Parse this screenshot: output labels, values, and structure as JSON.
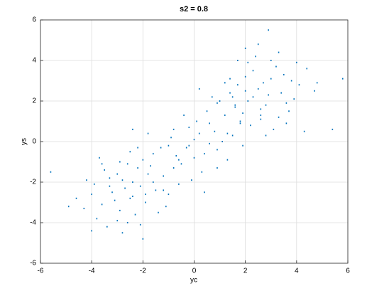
{
  "chart_data": {
    "type": "scatter",
    "title": "s2 = 0.8",
    "x_label": "yc",
    "y_label": "ys",
    "color": "#0072bd",
    "grid": true,
    "xlim": [
      -6,
      6
    ],
    "ylim": [
      -6,
      6
    ],
    "xticks": [
      -6,
      -4,
      -2,
      0,
      2,
      4,
      6
    ],
    "yticks": [
      -6,
      -4,
      -2,
      0,
      2,
      4,
      6
    ],
    "x": [
      -3.2,
      -2.8,
      -2.5,
      -2.1,
      -3.6,
      -4.0,
      -1.8,
      -2.9,
      -3.3,
      -2.4,
      -1.5,
      -2.2,
      -3.0,
      -3.9,
      -4.3,
      -2.6,
      -1.9,
      -3.5,
      -2.7,
      -1.2,
      -2.0,
      -3.1,
      -4.6,
      -2.3,
      -1.6,
      -3.8,
      -2.9,
      -1.0,
      -3.4,
      -2.5,
      -4.9,
      -5.6,
      -1.4,
      -2.8,
      -3.7,
      -2.1,
      -1.7,
      -3.3,
      -2.4,
      -0.8,
      -3.0,
      -4.2,
      -2.6,
      -1.9,
      -1.1,
      -2.2,
      -3.6,
      -4.0,
      -2.0,
      -0.6,
      -1.0,
      -0.5,
      0.0,
      0.4,
      -0.2,
      0.8,
      1.2,
      -0.8,
      0.3,
      -1.3,
      0.9,
      1.5,
      -0.3,
      0.1,
      0.6,
      -0.6,
      1.0,
      1.8,
      0.2,
      -1.6,
      0.5,
      1.3,
      -0.1,
      0.7,
      -0.9,
      1.6,
      0.0,
      -1.8,
      1.1,
      -1.2,
      -0.4,
      0.9,
      1.4,
      -0.7,
      0.2,
      -2.4,
      1.9,
      0.4,
      -0.2,
      0.6,
      2.5,
      2.1,
      3.0,
      2.8,
      1.7,
      3.4,
      2.3,
      3.8,
      1.9,
      2.6,
      3.2,
      2.0,
      1.5,
      2.9,
      3.6,
      4.1,
      2.4,
      1.8,
      3.3,
      2.7,
      3.0,
      4.4,
      2.2,
      1.4,
      3.5,
      2.6,
      4.7,
      2.0,
      3.1,
      1.6,
      2.5,
      3.9,
      1.2,
      2.8,
      5.4,
      5.8,
      4.3,
      2.1,
      3.7,
      0.9,
      2.3,
      3.3,
      4.0,
      1.7,
      2.9,
      2.6,
      3.6,
      1.3,
      2.0,
      4.8
    ],
    "values": [
      -2.5,
      -1.9,
      -2.8,
      -2.2,
      -3.1,
      -2.6,
      -1.6,
      -3.4,
      -1.8,
      -2.0,
      -2.4,
      -1.3,
      -3.9,
      -2.1,
      -3.3,
      -1.1,
      -3.0,
      -1.4,
      -2.3,
      -1.7,
      -0.9,
      -2.9,
      -2.8,
      -3.6,
      -2.0,
      -3.8,
      -1.0,
      -2.6,
      -4.2,
      -0.5,
      -3.2,
      -1.5,
      -3.5,
      -4.5,
      -0.8,
      -4.1,
      -1.2,
      -2.2,
      -2.7,
      -1.3,
      -1.6,
      -1.9,
      -4.0,
      -2.6,
      -3.2,
      -0.3,
      -1.1,
      -4.4,
      -4.8,
      -0.9,
      -0.2,
      -1.1,
      0.1,
      -0.6,
      0.7,
      0.5,
      1.3,
      0.6,
      -1.5,
      -0.3,
      -0.4,
      0.3,
      -0.3,
      1.0,
      -0.1,
      -2.1,
      2.0,
      0.9,
      0.4,
      -0.6,
      1.5,
      -0.9,
      -1.9,
      2.2,
      0.2,
      1.8,
      -0.8,
      0.4,
      0.0,
      -2.4,
      1.3,
      -1.3,
      2.4,
      -0.7,
      2.6,
      0.6,
      -0.2,
      -2.5,
      -0.2,
      0.9,
      2.6,
      2.0,
      3.1,
      1.8,
      2.8,
      2.4,
      3.5,
      3.0,
      1.4,
      1.1,
      3.7,
      3.2,
      2.2,
      2.3,
      1.9,
      2.8,
      4.2,
      1.0,
      1.2,
      2.9,
      4.0,
      3.6,
      0.8,
      3.1,
      3.3,
      1.6,
      2.5,
      2.5,
      0.6,
      1.7,
      4.8,
      2.1,
      2.9,
      0.3,
      0.6,
      3.1,
      0.5,
      3.9,
      1.5,
      1.9,
      2.2,
      4.4,
      3.9,
      4.0,
      5.5,
      1.3,
      0.9,
      0.4,
      4.6,
      2.9
    ]
  }
}
